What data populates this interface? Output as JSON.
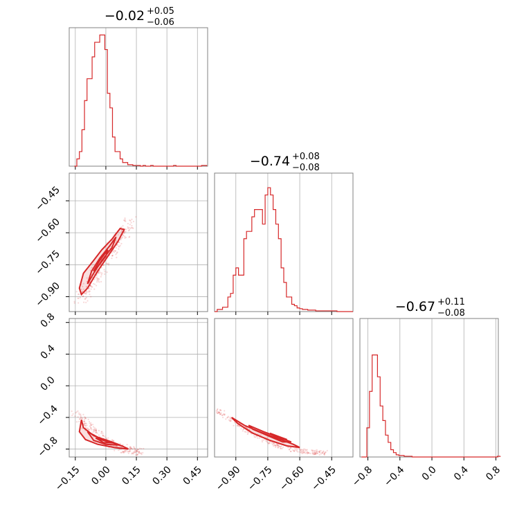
{
  "colors": {
    "accent": "#d62728",
    "grid": "#b0b0b0",
    "frame": "#808080"
  },
  "chart_data": [
    {
      "type": "histogram",
      "title": "−0.02",
      "title_sup": "+0.05",
      "title_sub": "−0.06",
      "xlim": [
        -0.18,
        0.5
      ],
      "ymax": 19,
      "grid": true,
      "x_ticks": [
        -0.15,
        0.0,
        0.15,
        0.3,
        0.45
      ],
      "bins_start": -0.155,
      "bin_width": 0.0125,
      "counts": [
        0,
        1,
        2,
        5,
        9,
        12,
        12,
        15,
        17,
        17,
        18,
        18,
        16,
        10,
        8,
        4,
        2,
        2,
        1,
        0.5,
        0.5,
        0.2,
        0.2,
        0.1,
        0.1,
        0.1,
        0,
        0.1,
        0,
        0,
        0.1,
        0,
        0,
        0,
        0,
        0,
        0,
        0,
        0,
        0.1,
        0,
        0,
        0,
        0,
        0,
        0,
        0,
        0,
        0,
        0,
        0.1,
        0.1
      ]
    },
    {
      "type": "histogram",
      "title": "−0.74",
      "title_sup": "+0.08",
      "title_sub": "−0.08",
      "xlim": [
        -1.0,
        -0.35
      ],
      "ymax": 19,
      "grid": true,
      "x_ticks": [
        -0.9,
        -0.75,
        -0.6,
        -0.45
      ],
      "bins_start": -1.0,
      "bin_width": 0.0125,
      "counts": [
        0,
        0.3,
        0.3,
        0.6,
        0.6,
        2,
        2.5,
        5,
        6,
        5,
        5,
        10,
        11,
        11,
        13,
        14,
        14,
        14,
        12,
        16,
        17,
        16,
        14,
        12,
        10,
        6,
        4,
        2,
        2,
        1,
        0.8,
        0.5,
        0.4,
        0.3,
        0.3,
        0.2,
        0.2,
        0.2,
        0.1,
        0.1,
        0.1,
        0.1,
        0.1,
        0.1,
        0.1,
        0.1,
        0,
        0,
        0,
        0,
        0,
        0
      ]
    },
    {
      "type": "histogram",
      "title": "−0.67",
      "title_sup": "+0.11",
      "title_sub": "−0.08",
      "xlim": [
        -0.9,
        0.83
      ],
      "ymax": 19,
      "grid": true,
      "x_ticks": [
        -0.8,
        -0.4,
        0.0,
        0.4,
        0.8
      ],
      "bins_start": -0.88,
      "bin_width": 0.0333,
      "counts": [
        0,
        0,
        4,
        9,
        14,
        14,
        11,
        7,
        5,
        3,
        2,
        1,
        0.6,
        0.3,
        0.2,
        0.2,
        0.1,
        0.1,
        0.1,
        0,
        0,
        0,
        0,
        0,
        0,
        0,
        0,
        0,
        0,
        0,
        0,
        0,
        0,
        0,
        0,
        0,
        0,
        0,
        0,
        0,
        0,
        0,
        0,
        0,
        0,
        0,
        0,
        0,
        0,
        0,
        0,
        0.1
      ]
    },
    {
      "type": "scatter",
      "xlim": [
        -0.18,
        0.5
      ],
      "ylim": [
        -0.97,
        -0.32
      ],
      "x_ticks": [
        -0.15,
        0.0,
        0.15,
        0.3,
        0.45
      ],
      "y_ticks": [
        -0.9,
        -0.75,
        -0.6,
        -0.45
      ],
      "y_tick_labels": [
        "−0.90",
        "−0.75",
        "−0.60",
        "−0.45"
      ],
      "grid": true,
      "contours": [
        [
          [
            -0.12,
            -0.89
          ],
          [
            -0.13,
            -0.86
          ],
          [
            -0.11,
            -0.79
          ],
          [
            -0.06,
            -0.73
          ],
          [
            -0.02,
            -0.68
          ],
          [
            0.03,
            -0.63
          ],
          [
            0.07,
            -0.58
          ],
          [
            0.09,
            -0.585
          ],
          [
            0.06,
            -0.64
          ],
          [
            0.01,
            -0.71
          ],
          [
            -0.04,
            -0.78
          ],
          [
            -0.09,
            -0.86
          ],
          [
            -0.12,
            -0.89
          ]
        ],
        [
          [
            -0.09,
            -0.84
          ],
          [
            -0.07,
            -0.78
          ],
          [
            -0.03,
            -0.72
          ],
          [
            0.02,
            -0.66
          ],
          [
            0.05,
            -0.62
          ],
          [
            0.03,
            -0.67
          ],
          [
            -0.02,
            -0.73
          ],
          [
            -0.06,
            -0.79
          ],
          [
            -0.09,
            -0.84
          ]
        ],
        [
          [
            -0.06,
            -0.78
          ],
          [
            -0.03,
            -0.73
          ],
          [
            0.01,
            -0.68
          ],
          [
            0.0,
            -0.71
          ],
          [
            -0.04,
            -0.76
          ],
          [
            -0.06,
            -0.78
          ]
        ]
      ],
      "points_hint": "dense band along the contours"
    },
    {
      "type": "scatter",
      "xlim": [
        -0.18,
        0.5
      ],
      "ylim": [
        -0.9,
        0.85
      ],
      "x_ticks": [
        -0.15,
        0.0,
        0.15,
        0.3,
        0.45
      ],
      "x_tick_labels": [
        "−0.15",
        "0.00",
        "0.15",
        "0.30",
        "0.45"
      ],
      "y_ticks": [
        -0.8,
        -0.4,
        0.0,
        0.4,
        0.8
      ],
      "y_tick_labels": [
        "−0.8",
        "−0.4",
        "0.0",
        "0.4",
        "0.8"
      ],
      "grid": true,
      "contours": [
        [
          [
            -0.12,
            -0.43
          ],
          [
            -0.11,
            -0.53
          ],
          [
            -0.06,
            -0.63
          ],
          [
            0.01,
            -0.7
          ],
          [
            0.08,
            -0.76
          ],
          [
            0.11,
            -0.8
          ],
          [
            0.04,
            -0.78
          ],
          [
            -0.04,
            -0.74
          ],
          [
            -0.1,
            -0.68
          ],
          [
            -0.13,
            -0.58
          ],
          [
            -0.12,
            -0.43
          ]
        ],
        [
          [
            -0.09,
            -0.58
          ],
          [
            -0.04,
            -0.65
          ],
          [
            0.03,
            -0.71
          ],
          [
            0.07,
            -0.75
          ],
          [
            0.0,
            -0.74
          ],
          [
            -0.06,
            -0.69
          ],
          [
            -0.09,
            -0.58
          ]
        ],
        [
          [
            -0.05,
            -0.66
          ],
          [
            0.0,
            -0.7
          ],
          [
            0.03,
            -0.72
          ],
          [
            -0.01,
            -0.72
          ],
          [
            -0.05,
            -0.66
          ]
        ]
      ]
    },
    {
      "type": "scatter",
      "xlim": [
        -1.0,
        -0.35
      ],
      "ylim": [
        -0.9,
        0.85
      ],
      "x_ticks": [
        -0.9,
        -0.75,
        -0.6,
        -0.45
      ],
      "x_tick_labels": [
        "−0.90",
        "−0.75",
        "−0.60",
        "−0.45"
      ],
      "grid": true,
      "contours": [
        [
          [
            -0.92,
            -0.4
          ],
          [
            -0.86,
            -0.5
          ],
          [
            -0.78,
            -0.59
          ],
          [
            -0.7,
            -0.67
          ],
          [
            -0.63,
            -0.74
          ],
          [
            -0.6,
            -0.78
          ],
          [
            -0.66,
            -0.76
          ],
          [
            -0.74,
            -0.69
          ],
          [
            -0.82,
            -0.6
          ],
          [
            -0.89,
            -0.48
          ],
          [
            -0.92,
            -0.4
          ]
        ],
        [
          [
            -0.84,
            -0.5
          ],
          [
            -0.77,
            -0.58
          ],
          [
            -0.7,
            -0.65
          ],
          [
            -0.64,
            -0.71
          ],
          [
            -0.68,
            -0.71
          ],
          [
            -0.75,
            -0.63
          ],
          [
            -0.82,
            -0.55
          ],
          [
            -0.84,
            -0.5
          ]
        ],
        [
          [
            -0.74,
            -0.6
          ],
          [
            -0.69,
            -0.65
          ],
          [
            -0.66,
            -0.68
          ],
          [
            -0.7,
            -0.67
          ],
          [
            -0.74,
            -0.6
          ]
        ]
      ]
    }
  ]
}
